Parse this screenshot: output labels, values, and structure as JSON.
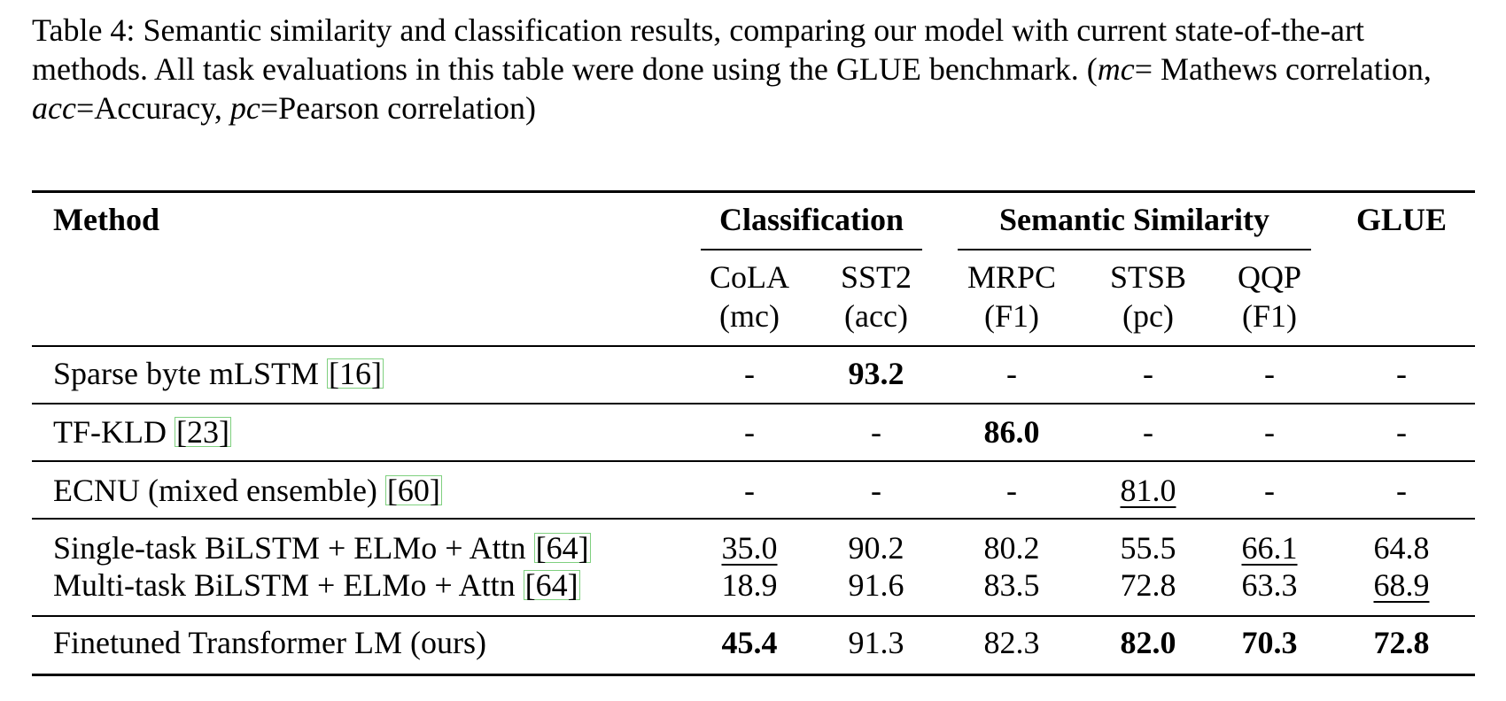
{
  "caption": [
    {
      "text": "Table 4: Semantic similarity and classification results, comparing our model with current state-of-the-art methods. All task evaluations in this table were done using the GLUE benchmark. ("
    },
    {
      "text": "mc",
      "italic": true
    },
    {
      "text": "= Mathews correlation, "
    },
    {
      "text": "acc",
      "italic": true
    },
    {
      "text": "=Accuracy, "
    },
    {
      "text": "pc",
      "italic": true
    },
    {
      "text": "=Pearson correlation)"
    }
  ],
  "table": {
    "method_header": "Method",
    "groups": [
      {
        "label": "Classification",
        "columns": [
          {
            "name": "CoLA",
            "metric": "(mc)"
          },
          {
            "name": "SST2",
            "metric": "(acc)"
          }
        ]
      },
      {
        "label": "Semantic Similarity",
        "columns": [
          {
            "name": "MRPC",
            "metric": "(F1)"
          },
          {
            "name": "STSB",
            "metric": "(pc)"
          },
          {
            "name": "QQP",
            "metric": "(F1)"
          }
        ]
      },
      {
        "label": "GLUE",
        "columns": []
      }
    ],
    "rows": [
      {
        "method": "Sparse byte mLSTM",
        "ref": "[16]",
        "cells": [
          {
            "text": "-"
          },
          {
            "text": "93.2",
            "bold": true
          },
          {
            "text": "-"
          },
          {
            "text": "-"
          },
          {
            "text": "-"
          },
          {
            "text": "-"
          }
        ]
      },
      {
        "method": "TF-KLD",
        "ref": "[23]",
        "cells": [
          {
            "text": "-"
          },
          {
            "text": "-"
          },
          {
            "text": "86.0",
            "bold": true
          },
          {
            "text": "-"
          },
          {
            "text": "-"
          },
          {
            "text": "-"
          }
        ]
      },
      {
        "method": "ECNU (mixed ensemble)",
        "ref": "[60]",
        "cells": [
          {
            "text": "-"
          },
          {
            "text": "-"
          },
          {
            "text": "-"
          },
          {
            "text": "81.0",
            "underline": true
          },
          {
            "text": "-"
          },
          {
            "text": "-"
          }
        ]
      },
      {
        "method": "Single-task BiLSTM + ELMo + Attn",
        "ref": "[64]",
        "cells": [
          {
            "text": "35.0",
            "underline": true
          },
          {
            "text": "90.2"
          },
          {
            "text": "80.2"
          },
          {
            "text": "55.5"
          },
          {
            "text": "66.1",
            "underline": true
          },
          {
            "text": "64.8"
          }
        ]
      },
      {
        "method": "Multi-task BiLSTM + ELMo + Attn",
        "ref": "[64]",
        "cells": [
          {
            "text": "18.9"
          },
          {
            "text": "91.6"
          },
          {
            "text": "83.5"
          },
          {
            "text": "72.8"
          },
          {
            "text": "63.3"
          },
          {
            "text": "68.9",
            "underline": true
          }
        ]
      },
      {
        "method": "Finetuned Transformer LM (ours)",
        "cells": [
          {
            "text": "45.4",
            "bold": true
          },
          {
            "text": "91.3"
          },
          {
            "text": "82.3"
          },
          {
            "text": "82.0",
            "bold": true
          },
          {
            "text": "70.3",
            "bold": true
          },
          {
            "text": "72.8",
            "bold": true
          }
        ]
      }
    ]
  }
}
